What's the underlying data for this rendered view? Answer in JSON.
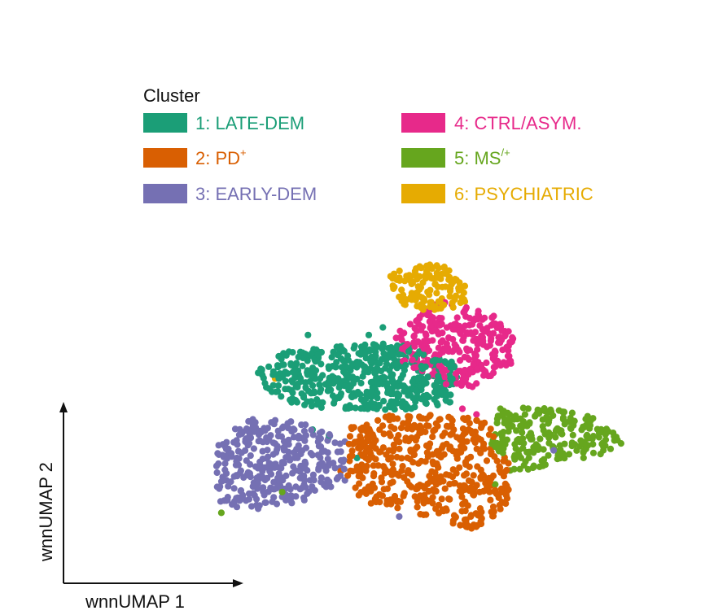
{
  "chart_data": {
    "type": "scatter",
    "legend": {
      "title": "Cluster",
      "placement": "top",
      "entries": [
        {
          "id": 1,
          "label": "1: LATE-DEM",
          "color": "#1b9e77"
        },
        {
          "id": 2,
          "label": "2: PD",
          "sup": "+",
          "color": "#d95f02"
        },
        {
          "id": 3,
          "label": "3: EARLY-DEM",
          "color": "#7570b3"
        },
        {
          "id": 4,
          "label": "4: CTRL/ASYM.",
          "color": "#e7298a"
        },
        {
          "id": 5,
          "label": "5: MS",
          "sup": "/+",
          "color": "#66a61e"
        },
        {
          "id": 6,
          "label": "6: PSYCHIATRIC",
          "color": "#e6ab02"
        }
      ]
    },
    "xlabel": "wnnUMAP 1",
    "ylabel": "wnnUMAP 2",
    "xlim": [
      0,
      10
    ],
    "ylim": [
      0,
      10
    ],
    "grid": false,
    "ticks": false,
    "series": [
      {
        "name": "1: LATE-DEM",
        "cluster": 1,
        "color": "#1b9e77",
        "region": [
          [
            2.05,
            5.6
          ],
          [
            2.9,
            5.05
          ],
          [
            4.0,
            5.0
          ],
          [
            5.3,
            4.95
          ],
          [
            6.3,
            5.2
          ],
          [
            6.3,
            6.2
          ],
          [
            5.0,
            6.75
          ],
          [
            3.7,
            6.65
          ],
          [
            2.6,
            6.5
          ],
          [
            2.0,
            6.0
          ]
        ]
      },
      {
        "name": "2: PD",
        "cluster": 2,
        "color": "#d95f02",
        "region": [
          [
            3.95,
            4.55
          ],
          [
            5.1,
            4.9
          ],
          [
            6.9,
            4.75
          ],
          [
            7.4,
            3.55
          ],
          [
            7.4,
            2.4
          ],
          [
            6.6,
            1.8
          ],
          [
            5.6,
            2.15
          ],
          [
            4.4,
            2.35
          ],
          [
            3.95,
            3.1
          ]
        ]
      },
      {
        "name": "3: EARLY-DEM",
        "cluster": 3,
        "color": "#7570b3",
        "region": [
          [
            1.15,
            4.05
          ],
          [
            1.75,
            4.75
          ],
          [
            3.0,
            4.65
          ],
          [
            3.95,
            4.1
          ],
          [
            3.9,
            3.1
          ],
          [
            2.9,
            2.5
          ],
          [
            1.8,
            2.25
          ],
          [
            1.1,
            2.55
          ]
        ]
      },
      {
        "name": "4: CTRL/ASYM.",
        "cluster": 4,
        "color": "#e7298a",
        "region": [
          [
            4.95,
            6.95
          ],
          [
            5.9,
            7.85
          ],
          [
            7.0,
            7.55
          ],
          [
            7.5,
            6.9
          ],
          [
            7.45,
            6.05
          ],
          [
            6.7,
            5.55
          ],
          [
            6.0,
            5.6
          ],
          [
            5.1,
            6.25
          ]
        ]
      },
      {
        "name": "5: MS",
        "cluster": 5,
        "color": "#66a61e",
        "region": [
          [
            7.2,
            5.0
          ],
          [
            8.3,
            5.05
          ],
          [
            9.3,
            4.75
          ],
          [
            9.85,
            4.1
          ],
          [
            9.3,
            3.75
          ],
          [
            8.2,
            3.5
          ],
          [
            7.4,
            3.25
          ],
          [
            7.0,
            4.05
          ]
        ]
      },
      {
        "name": "6: PSYCHIATRIC",
        "cluster": 6,
        "color": "#e6ab02",
        "region": [
          [
            4.85,
            8.55
          ],
          [
            5.4,
            8.85
          ],
          [
            6.05,
            8.8
          ],
          [
            6.55,
            8.2
          ],
          [
            6.45,
            7.7
          ],
          [
            5.6,
            7.55
          ],
          [
            5.0,
            7.8
          ]
        ]
      }
    ]
  }
}
